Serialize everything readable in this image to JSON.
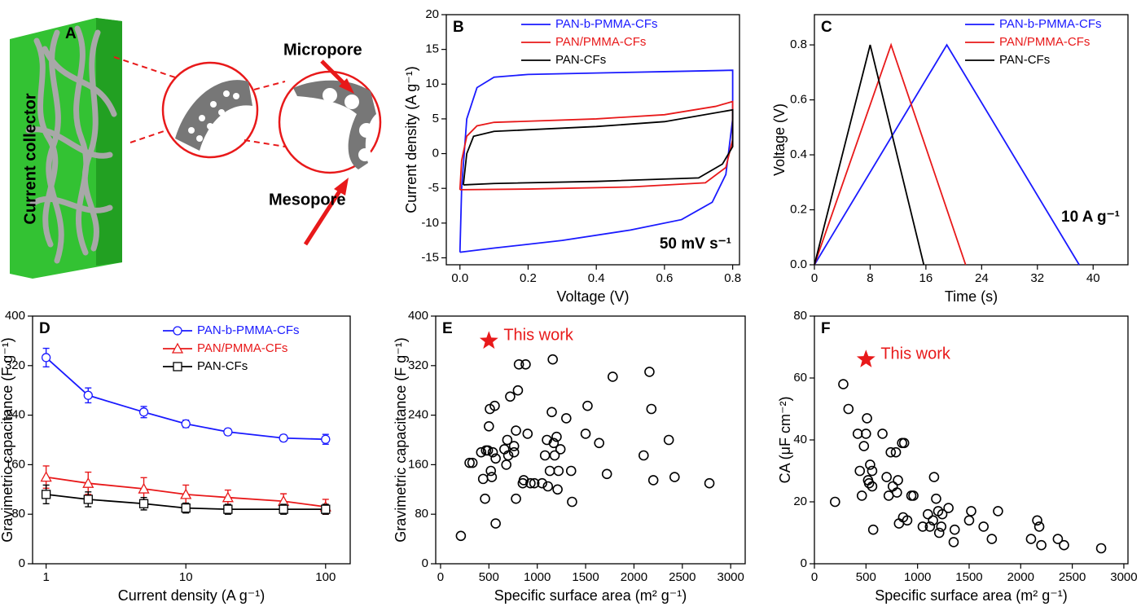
{
  "diagram": {
    "label": "A",
    "texts": [
      "Current collector",
      "Micropore",
      "Mesopore"
    ]
  },
  "chart_data": [
    {
      "type": "line",
      "panel": "B",
      "xlabel": "Voltage (V)",
      "ylabel": "Current density (A g⁻¹)",
      "annotation": "50 mV s⁻¹",
      "xlim": [
        -0.04,
        0.82
      ],
      "ylim": [
        -16,
        20
      ],
      "xticks": [
        {
          "value": 0,
          "label": "0.0"
        },
        0.2,
        0.4,
        0.6,
        0.8
      ],
      "yticks": [
        -15,
        -10,
        -5,
        0,
        5,
        10,
        15,
        20
      ],
      "legend": "upper center",
      "grid": false,
      "series": [
        {
          "name": "PAN-b-PMMA-CFs",
          "color": "#1a1aff",
          "x": [
            0,
            0.005,
            0.02,
            0.05,
            0.1,
            0.2,
            0.4,
            0.6,
            0.8,
            0.8,
            0.78,
            0.74,
            0.65,
            0.5,
            0.3,
            0.1,
            0
          ],
          "values": [
            -14.2,
            -5,
            5,
            9.5,
            11,
            11.4,
            11.6,
            11.8,
            12,
            5,
            -3,
            -7,
            -9.5,
            -11,
            -12.5,
            -13.6,
            -14.2
          ]
        },
        {
          "name": "PAN/PMMA-CFs",
          "color": "#e8191a",
          "x": [
            0,
            0.005,
            0.02,
            0.05,
            0.1,
            0.4,
            0.6,
            0.75,
            0.8,
            0.8,
            0.78,
            0.72,
            0.5,
            0.2,
            0
          ],
          "values": [
            -5.2,
            -1,
            2.5,
            4,
            4.5,
            5,
            5.6,
            6.8,
            7.5,
            2,
            -2,
            -4.2,
            -4.8,
            -5.1,
            -5.2
          ]
        },
        {
          "name": "PAN-CFs",
          "color": "#000000",
          "x": [
            0.01,
            0.02,
            0.04,
            0.1,
            0.4,
            0.6,
            0.8,
            0.8,
            0.77,
            0.7,
            0.4,
            0.1,
            0.01
          ],
          "values": [
            -4.5,
            0,
            2.5,
            3.2,
            3.9,
            4.6,
            6.3,
            1,
            -1.5,
            -3.5,
            -4,
            -4.3,
            -4.5
          ]
        }
      ]
    },
    {
      "type": "line",
      "panel": "C",
      "xlabel": "Time (s)",
      "ylabel": "Voltage (V)",
      "annotation": "10 A g⁻¹",
      "xlim": [
        0,
        45
      ],
      "ylim": [
        0,
        0.91
      ],
      "xticks": [
        0,
        8,
        16,
        24,
        32,
        40
      ],
      "yticks": [
        {
          "value": 0,
          "label": "0.0"
        },
        0.2,
        0.4,
        0.6,
        0.8
      ],
      "legend": "upper right",
      "grid": false,
      "series": [
        {
          "name": "PAN-b-PMMA-CFs",
          "color": "#1a1aff",
          "x": [
            0,
            19,
            38
          ],
          "values": [
            0,
            0.8,
            0
          ]
        },
        {
          "name": "PAN/PMMA-CFs",
          "color": "#e8191a",
          "x": [
            0,
            11,
            21.7
          ],
          "values": [
            0,
            0.8,
            0
          ]
        },
        {
          "name": "PAN-CFs",
          "color": "#000000",
          "x": [
            0,
            8,
            15.7
          ],
          "values": [
            0,
            0.8,
            0
          ]
        }
      ]
    },
    {
      "type": "line",
      "panel": "D",
      "xlabel": "Current density (A g⁻¹)",
      "ylabel": "Gravimetric capacitance (F g⁻¹)",
      "xscale": "log",
      "xlim": [
        0.8,
        150
      ],
      "ylim": [
        0,
        400
      ],
      "xticks": [
        1,
        10,
        100
      ],
      "yticks": [
        0,
        80,
        160,
        240,
        320,
        400
      ],
      "legend": "upper center",
      "grid": false,
      "x": [
        1,
        2,
        5,
        10,
        20,
        50,
        100
      ],
      "series": [
        {
          "name": "PAN-b-PMMA-CFs",
          "color": "#1a1aff",
          "marker": "circle",
          "values": [
            333,
            272,
            245,
            226,
            213,
            203,
            201
          ],
          "errors": [
            15,
            12,
            9,
            6,
            5,
            5,
            8
          ]
        },
        {
          "name": "PAN/PMMA-CFs",
          "color": "#e8191a",
          "marker": "triangle",
          "values": [
            140,
            130,
            121,
            112,
            107,
            101,
            92
          ],
          "errors": [
            18,
            18,
            18,
            15,
            12,
            12,
            12
          ]
        },
        {
          "name": "PAN-CFs",
          "color": "#000000",
          "marker": "square",
          "values": [
            112,
            104,
            97,
            90,
            88,
            88,
            88
          ],
          "errors": [
            15,
            12,
            10,
            8,
            8,
            8,
            8
          ]
        }
      ]
    },
    {
      "type": "scatter",
      "panel": "E",
      "xlabel": "Specific surface area (m² g⁻¹)",
      "ylabel": "Gravimetric capacitance (F g⁻¹)",
      "xlim": [
        -50,
        3150
      ],
      "ylim": [
        0,
        400
      ],
      "xticks": [
        0,
        500,
        1000,
        1500,
        2000,
        2500,
        3000
      ],
      "yticks": [
        0,
        80,
        160,
        240,
        320,
        400
      ],
      "grid": false,
      "color": "#000000",
      "x": [
        210,
        300,
        330,
        420,
        440,
        460,
        470,
        490,
        500,
        510,
        520,
        530,
        540,
        560,
        570,
        570,
        660,
        680,
        690,
        700,
        720,
        760,
        760,
        780,
        780,
        800,
        810,
        850,
        860,
        880,
        900,
        930,
        970,
        1050,
        1080,
        1100,
        1110,
        1130,
        1150,
        1160,
        1170,
        1180,
        1200,
        1210,
        1220,
        1240,
        1300,
        1350,
        1360,
        1500,
        1520,
        1640,
        1720,
        1780,
        2100,
        2160,
        2180,
        2200,
        2360,
        2420,
        2780
      ],
      "values": [
        45,
        163,
        163,
        180,
        137,
        105,
        183,
        183,
        222,
        250,
        150,
        140,
        180,
        255,
        65,
        170,
        185,
        160,
        200,
        175,
        270,
        190,
        180,
        215,
        105,
        280,
        322,
        130,
        135,
        322,
        210,
        130,
        130,
        130,
        175,
        200,
        125,
        150,
        245,
        330,
        195,
        175,
        205,
        120,
        150,
        185,
        235,
        150,
        100,
        210,
        255,
        195,
        145,
        302,
        175,
        310,
        250,
        135,
        200,
        140,
        130
      ],
      "highlight": {
        "x": 500,
        "y": 360,
        "label": "This work",
        "color": "#e8191a"
      }
    },
    {
      "type": "scatter",
      "panel": "F",
      "xlabel": "Specific surface area (m² g⁻¹)",
      "ylabel": "CA (μF cm⁻²)",
      "xlim": [
        0,
        3040
      ],
      "ylim": [
        0,
        80
      ],
      "xticks": [
        0,
        500,
        1000,
        1500,
        2000,
        2500,
        3000
      ],
      "yticks": [
        0,
        20,
        40,
        60,
        80
      ],
      "grid": false,
      "color": "#000000",
      "x": [
        200,
        280,
        330,
        420,
        440,
        460,
        480,
        500,
        510,
        520,
        530,
        540,
        560,
        570,
        560,
        660,
        700,
        720,
        740,
        760,
        790,
        800,
        810,
        820,
        850,
        860,
        870,
        900,
        940,
        960,
        1050,
        1100,
        1120,
        1150,
        1160,
        1180,
        1200,
        1210,
        1230,
        1240,
        1300,
        1350,
        1360,
        1500,
        1520,
        1640,
        1720,
        1780,
        2100,
        2160,
        2180,
        2200,
        2360,
        2420,
        2780
      ],
      "values": [
        20,
        58,
        50,
        42,
        30,
        22,
        38,
        42,
        47,
        27,
        26,
        32,
        30,
        11,
        25,
        42,
        28,
        22,
        36,
        25,
        36,
        23,
        27,
        13,
        39,
        15,
        39,
        14,
        22,
        22,
        12,
        16,
        12,
        14,
        28,
        21,
        17,
        10,
        12,
        16,
        18,
        7,
        11,
        14,
        17,
        12,
        8,
        17,
        8,
        14,
        12,
        6,
        8,
        6,
        5
      ],
      "highlight": {
        "x": 500,
        "y": 66,
        "label": "This work",
        "color": "#e8191a"
      }
    }
  ]
}
